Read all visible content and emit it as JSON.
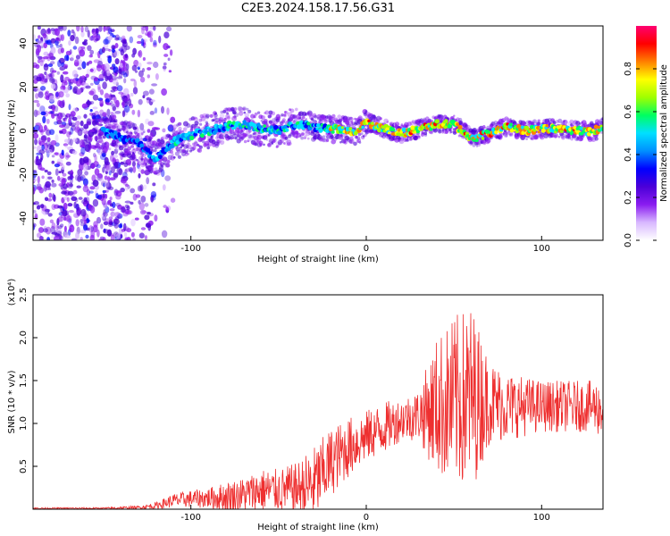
{
  "figure_title": "C2E3.2024.158.17.56.G31",
  "chart_data": [
    {
      "type": "heatmap",
      "title": "C2E3.2024.158.17.56.G31",
      "xlabel": "Height of straight line (km)",
      "ylabel": "Frequency (Hz)",
      "xlim": [
        -190,
        135
      ],
      "ylim": [
        -50,
        48
      ],
      "xticks": [
        -100,
        0,
        100
      ],
      "yticks": [
        -40,
        -20,
        0,
        20,
        40
      ],
      "colorbar": {
        "label": "Normalized spectral amplitude",
        "range": [
          0,
          1
        ],
        "ticks": [
          "0.0",
          "0.2",
          "0.4",
          "0.6",
          "0.8"
        ],
        "colormap": [
          "#ffffff",
          "#d8b8ff",
          "#8a1cf0",
          "#4b00d8",
          "#0000ff",
          "#0090ff",
          "#00e0ff",
          "#00ff60",
          "#a0ff00",
          "#ffff00",
          "#ff8000",
          "#ff0000",
          "#ff0070"
        ]
      },
      "ridge_x": [
        -150,
        -140,
        -130,
        -120,
        -110,
        -100,
        -90,
        -80,
        -70,
        -60,
        -50,
        -40,
        -30,
        -20,
        -10,
        -5,
        0,
        10,
        20,
        30,
        40,
        50,
        55,
        60,
        70,
        80,
        90,
        100,
        110,
        120,
        130,
        135
      ],
      "ridge_y": [
        0,
        -3,
        -6,
        -13,
        -5,
        -2,
        0,
        2,
        3,
        1,
        0,
        3,
        2,
        1,
        0,
        0,
        4,
        1,
        -1,
        1,
        3,
        3,
        0,
        -4,
        -1,
        2,
        0,
        1,
        1,
        0,
        0,
        2
      ]
    },
    {
      "type": "line",
      "title": "",
      "xlabel": "Height of straight line (km)",
      "ylabel": "SNR (10 * v/v)",
      "y_multiplier": "(x10⁴)",
      "xlim": [
        -190,
        135
      ],
      "ylim": [
        0,
        2.5
      ],
      "xticks": [
        -100,
        0,
        100
      ],
      "yticks": [
        0.5,
        1.0,
        1.5,
        2.0,
        2.5
      ],
      "color": "#ee3030",
      "x": [
        -190,
        -170,
        -150,
        -130,
        -120,
        -110,
        -100,
        -90,
        -80,
        -70,
        -60,
        -50,
        -40,
        -30,
        -20,
        -10,
        0,
        10,
        20,
        30,
        40,
        50,
        60,
        70,
        80,
        90,
        100,
        110,
        120,
        130,
        135
      ],
      "baseline": [
        0.01,
        0.01,
        0.01,
        0.02,
        0.04,
        0.1,
        0.12,
        0.13,
        0.14,
        0.17,
        0.22,
        0.22,
        0.24,
        0.28,
        0.55,
        0.72,
        0.85,
        0.95,
        1.05,
        1.1,
        1.2,
        1.25,
        1.3,
        1.25,
        1.2,
        1.2,
        1.2,
        1.2,
        1.2,
        1.2,
        1.15
      ],
      "spread": [
        0.01,
        0.01,
        0.01,
        0.02,
        0.04,
        0.08,
        0.1,
        0.12,
        0.18,
        0.2,
        0.25,
        0.25,
        0.3,
        0.45,
        0.4,
        0.35,
        0.3,
        0.3,
        0.25,
        0.3,
        0.8,
        1.0,
        1.1,
        0.5,
        0.4,
        0.35,
        0.3,
        0.3,
        0.3,
        0.3,
        0.35
      ]
    }
  ]
}
